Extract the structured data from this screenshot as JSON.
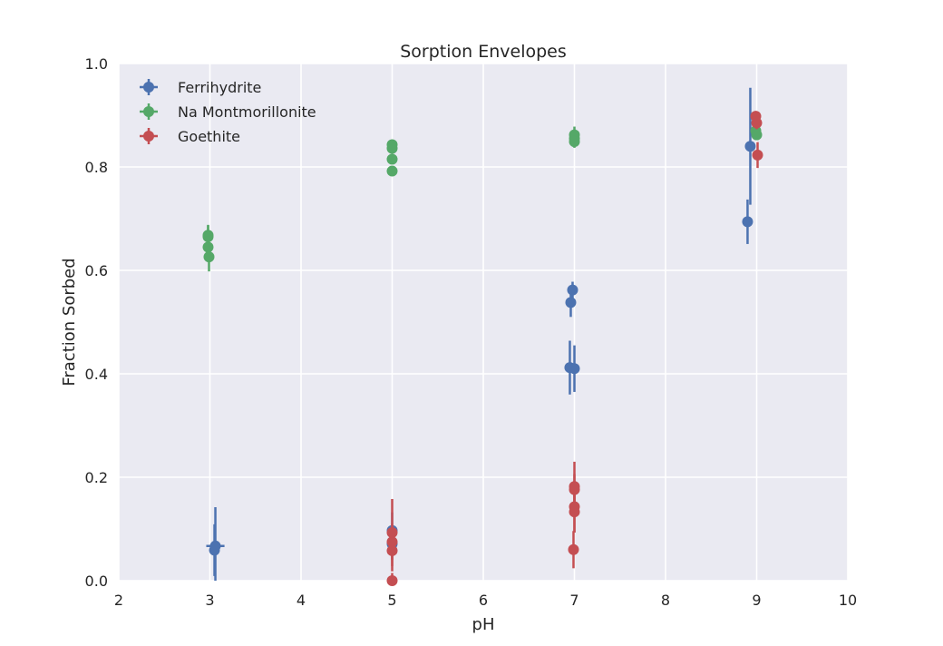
{
  "chart_data": {
    "type": "scatter",
    "title": "Sorption Envelopes",
    "xlabel": "pH",
    "ylabel": "Fraction Sorbed",
    "xlim": [
      2,
      10
    ],
    "ylim": [
      0.0,
      1.0
    ],
    "xticks": [
      "2",
      "3",
      "4",
      "5",
      "6",
      "7",
      "8",
      "9",
      "10"
    ],
    "yticks": [
      "0.0",
      "0.2",
      "0.4",
      "0.6",
      "0.8",
      "1.0"
    ],
    "grid": true,
    "legend_position": "top-left",
    "series": [
      {
        "name": "Ferrihydrite",
        "color": "#4c72b0",
        "points": [
          {
            "x": 3.05,
            "y": 0.059,
            "yerr": 0.05,
            "xerr": 0.0
          },
          {
            "x": 3.06,
            "y": 0.067,
            "yerr": 0.075,
            "xerr": 0.1
          },
          {
            "x": 5.0,
            "y": 0.097,
            "yerr": 0.035,
            "xerr": 0.0
          },
          {
            "x": 5.0,
            "y": 0.071,
            "yerr": 0.03,
            "xerr": 0.0
          },
          {
            "x": 6.95,
            "y": 0.412,
            "yerr": 0.052,
            "xerr": 0.0
          },
          {
            "x": 7.0,
            "y": 0.41,
            "yerr": 0.045,
            "xerr": 0.0
          },
          {
            "x": 6.96,
            "y": 0.538,
            "yerr": 0.028,
            "xerr": 0.0
          },
          {
            "x": 6.98,
            "y": 0.562,
            "yerr": 0.016,
            "xerr": 0.0
          },
          {
            "x": 8.9,
            "y": 0.694,
            "yerr": 0.043,
            "xerr": 0.0
          },
          {
            "x": 8.93,
            "y": 0.84,
            "yerr": 0.113,
            "xerr": 0.0
          }
        ]
      },
      {
        "name": "Na Montmorillonite",
        "color": "#55a868",
        "points": [
          {
            "x": 2.98,
            "y": 0.665,
            "yerr": 0.022,
            "xerr": 0.0
          },
          {
            "x": 2.98,
            "y": 0.668,
            "yerr": 0.02,
            "xerr": 0.0
          },
          {
            "x": 2.98,
            "y": 0.645,
            "yerr": 0.02,
            "xerr": 0.0
          },
          {
            "x": 2.99,
            "y": 0.626,
            "yerr": 0.028,
            "xerr": 0.0
          },
          {
            "x": 5.0,
            "y": 0.843,
            "yerr": 0.008,
            "xerr": 0.0
          },
          {
            "x": 5.0,
            "y": 0.836,
            "yerr": 0.008,
            "xerr": 0.0
          },
          {
            "x": 5.0,
            "y": 0.815,
            "yerr": 0.008,
            "xerr": 0.0
          },
          {
            "x": 5.0,
            "y": 0.792,
            "yerr": 0.008,
            "xerr": 0.0
          },
          {
            "x": 7.0,
            "y": 0.862,
            "yerr": 0.016,
            "xerr": 0.0
          },
          {
            "x": 7.0,
            "y": 0.855,
            "yerr": 0.014,
            "xerr": 0.0
          },
          {
            "x": 7.0,
            "y": 0.849,
            "yerr": 0.012,
            "xerr": 0.0
          },
          {
            "x": 8.99,
            "y": 0.87,
            "yerr": 0.01,
            "xerr": 0.0
          },
          {
            "x": 9.0,
            "y": 0.862,
            "yerr": 0.01,
            "xerr": 0.0
          }
        ]
      },
      {
        "name": "Goethite",
        "color": "#c44e52",
        "points": [
          {
            "x": 5.0,
            "y": 0.093,
            "yerr": 0.065,
            "xerr": 0.0
          },
          {
            "x": 5.0,
            "y": 0.075,
            "yerr": 0.035,
            "xerr": 0.0
          },
          {
            "x": 5.0,
            "y": 0.058,
            "yerr": 0.04,
            "xerr": 0.0
          },
          {
            "x": 5.0,
            "y": 0.0,
            "yerr": 0.015,
            "xerr": 0.0
          },
          {
            "x": 7.0,
            "y": 0.182,
            "yerr": 0.048,
            "xerr": 0.0
          },
          {
            "x": 7.0,
            "y": 0.176,
            "yerr": 0.03,
            "xerr": 0.0
          },
          {
            "x": 7.0,
            "y": 0.143,
            "yerr": 0.05,
            "xerr": 0.0
          },
          {
            "x": 7.0,
            "y": 0.133,
            "yerr": 0.04,
            "xerr": 0.0
          },
          {
            "x": 6.99,
            "y": 0.06,
            "yerr": 0.036,
            "xerr": 0.0
          },
          {
            "x": 8.99,
            "y": 0.898,
            "yerr": 0.008,
            "xerr": 0.0
          },
          {
            "x": 9.0,
            "y": 0.885,
            "yerr": 0.012,
            "xerr": 0.0
          },
          {
            "x": 9.01,
            "y": 0.823,
            "yerr": 0.025,
            "xerr": 0.0
          }
        ]
      }
    ]
  }
}
